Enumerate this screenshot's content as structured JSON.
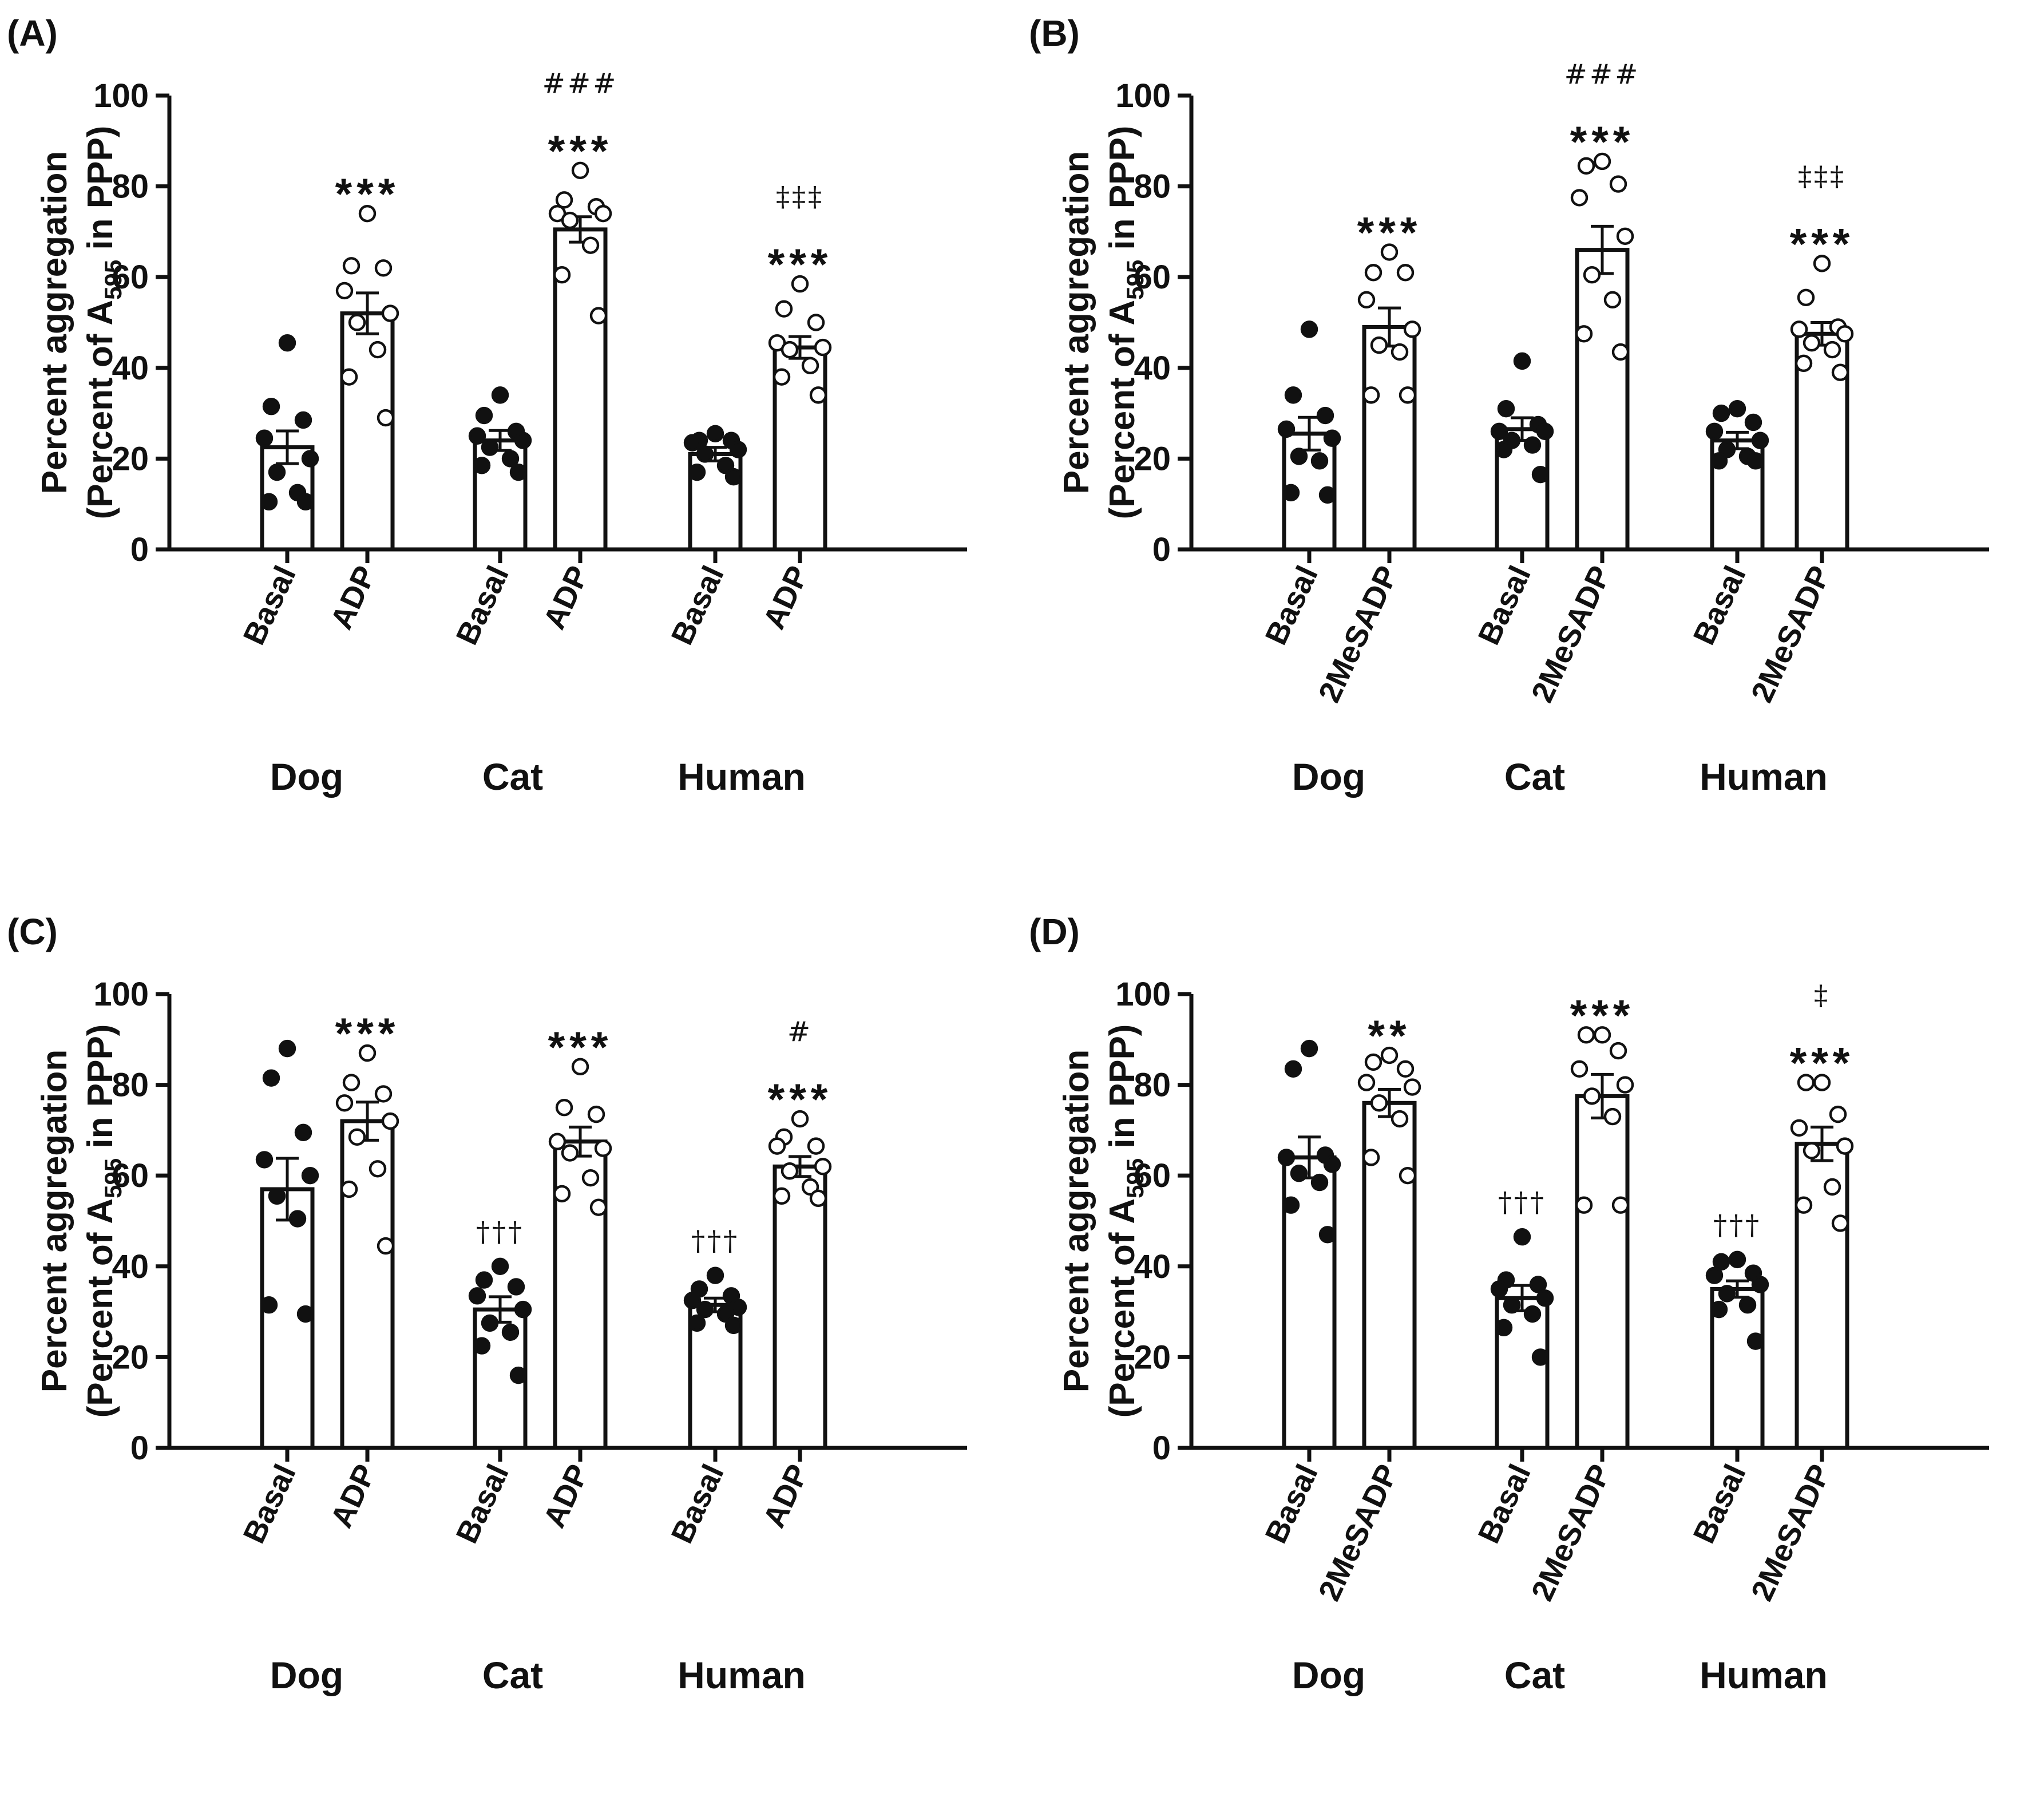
{
  "chart_data": [
    {
      "type": "bar",
      "panel_label": "(A)",
      "ylabel": "Percent aggregation",
      "ylabel2_prefix": "(Percent of A",
      "ylabel2_sub": "595",
      "ylabel2_suffix": " in PPP)",
      "ylim": [
        0,
        100
      ],
      "yticks": [
        "0",
        "20",
        "40",
        "60",
        "80",
        "100"
      ],
      "groups": [
        {
          "name": "Dog",
          "bars": [
            {
              "label": "Basal",
              "value": 22.5,
              "sem": 3.6,
              "filled": true,
              "points": [
                45.5,
                31.5,
                28.5,
                24.5,
                20,
                17,
                12.5,
                10.5,
                10.5
              ],
              "annotations": []
            },
            {
              "label": "ADP",
              "value": 52,
              "sem": 4.5,
              "filled": false,
              "points": [
                74,
                62.5,
                62,
                57,
                52,
                50,
                44,
                38,
                29
              ],
              "annotations": [
                "***"
              ]
            }
          ]
        },
        {
          "name": "Cat",
          "bars": [
            {
              "label": "Basal",
              "value": 24,
              "sem": 2.2,
              "filled": true,
              "points": [
                34,
                29.5,
                26,
                25,
                24,
                22.5,
                20,
                18.5,
                17
              ],
              "annotations": []
            },
            {
              "label": "ADP",
              "value": 70.5,
              "sem": 2.8,
              "filled": false,
              "points": [
                83.5,
                77,
                75.5,
                74,
                74,
                72.5,
                67,
                60.5,
                51.5
              ],
              "annotations": [
                "###",
                "***"
              ]
            }
          ]
        },
        {
          "name": "Human",
          "bars": [
            {
              "label": "Basal",
              "value": 21,
              "sem": 1.5,
              "filled": true,
              "points": [
                25.5,
                24,
                24,
                23.5,
                22,
                21,
                18.5,
                17,
                16
              ],
              "annotations": []
            },
            {
              "label": "ADP",
              "value": 44.5,
              "sem": 2.4,
              "filled": false,
              "points": [
                58.5,
                53,
                50,
                45.5,
                44.5,
                44,
                40.5,
                38,
                34
              ],
              "annotations": [
                "‡‡‡",
                "***"
              ]
            }
          ]
        }
      ]
    },
    {
      "type": "bar",
      "panel_label": "(B)",
      "ylabel": "Percent aggregation",
      "ylabel2_prefix": "(Percent of A",
      "ylabel2_sub": "595",
      "ylabel2_suffix": " in PPP)",
      "ylim": [
        0,
        100
      ],
      "yticks": [
        "0",
        "20",
        "40",
        "60",
        "80",
        "100"
      ],
      "groups": [
        {
          "name": "Dog",
          "bars": [
            {
              "label": "Basal",
              "value": 25.5,
              "sem": 3.6,
              "filled": true,
              "points": [
                48.5,
                34,
                29.5,
                26.5,
                24.5,
                20.5,
                19.5,
                12.5,
                12
              ],
              "annotations": []
            },
            {
              "label": "2MeSADP",
              "value": 49,
              "sem": 4.2,
              "filled": false,
              "points": [
                65.5,
                61,
                61,
                55,
                48.5,
                45,
                43.5,
                34,
                34
              ],
              "annotations": [
                "***"
              ]
            }
          ]
        },
        {
          "name": "Cat",
          "bars": [
            {
              "label": "Basal",
              "value": 26.5,
              "sem": 2.5,
              "filled": true,
              "points": [
                41.5,
                31,
                27.5,
                26,
                26,
                24,
                23,
                22,
                16.5
              ],
              "annotations": []
            },
            {
              "label": "2MeSADP",
              "value": 66,
              "sem": 5.2,
              "filled": false,
              "points": [
                85.5,
                84.5,
                80.5,
                77.5,
                69,
                60.5,
                55,
                47.5,
                43.5
              ],
              "annotations": [
                "###",
                "***"
              ]
            }
          ]
        },
        {
          "name": "Human",
          "bars": [
            {
              "label": "Basal",
              "value": 24,
              "sem": 1.8,
              "filled": true,
              "points": [
                31,
                30,
                28,
                26,
                24,
                22,
                20.5,
                19.5,
                19.5
              ],
              "annotations": []
            },
            {
              "label": "2MeSADP",
              "value": 47.5,
              "sem": 2.5,
              "filled": false,
              "points": [
                63,
                55.5,
                49,
                48.5,
                47.5,
                45.5,
                44,
                41,
                39
              ],
              "annotations": [
                "‡‡‡",
                "***"
              ]
            }
          ]
        }
      ]
    },
    {
      "type": "bar",
      "panel_label": "(C)",
      "ylabel": "Percent aggregation",
      "ylabel2_prefix": "(Percent of A",
      "ylabel2_sub": "595",
      "ylabel2_suffix": " in PPP)",
      "ylim": [
        0,
        100
      ],
      "yticks": [
        "0",
        "20",
        "40",
        "60",
        "80",
        "100"
      ],
      "groups": [
        {
          "name": "Dog",
          "bars": [
            {
              "label": "Basal",
              "value": 57,
              "sem": 6.8,
              "filled": true,
              "points": [
                88,
                81.5,
                69.5,
                63.5,
                60,
                55.5,
                50.5,
                31.5,
                29.5
              ],
              "annotations": []
            },
            {
              "label": "ADP",
              "value": 72,
              "sem": 4.2,
              "filled": false,
              "points": [
                87,
                80.5,
                78,
                76,
                72,
                68.5,
                61.5,
                57,
                44.5
              ],
              "annotations": [
                "***"
              ]
            }
          ]
        },
        {
          "name": "Cat",
          "bars": [
            {
              "label": "Basal",
              "value": 30.5,
              "sem": 2.8,
              "filled": true,
              "points": [
                40,
                37,
                35.5,
                33.5,
                30.5,
                27.5,
                25.5,
                22.5,
                16
              ],
              "annotations": [
                "†††"
              ]
            },
            {
              "label": "ADP",
              "value": 67.5,
              "sem": 3.2,
              "filled": false,
              "points": [
                84,
                75,
                73.5,
                67.5,
                66,
                65,
                59.5,
                56,
                53
              ],
              "annotations": [
                "***"
              ]
            }
          ]
        },
        {
          "name": "Human",
          "bars": [
            {
              "label": "Basal",
              "value": 31.5,
              "sem": 1.5,
              "filled": true,
              "points": [
                38,
                35,
                33.5,
                32.5,
                31,
                30.5,
                29.5,
                27.5,
                27
              ],
              "annotations": [
                "†††"
              ]
            },
            {
              "label": "ADP",
              "value": 62,
              "sem": 2.2,
              "filled": false,
              "points": [
                72.5,
                68.5,
                66.5,
                66.5,
                62,
                61,
                57.5,
                55.5,
                55
              ],
              "annotations": [
                "#",
                "***"
              ]
            }
          ]
        }
      ]
    },
    {
      "type": "bar",
      "panel_label": "(D)",
      "ylabel": "Percent aggregation",
      "ylabel2_prefix": "(Percent of A",
      "ylabel2_sub": "595",
      "ylabel2_suffix": " in PPP)",
      "ylim": [
        0,
        100
      ],
      "yticks": [
        "0",
        "20",
        "40",
        "60",
        "80",
        "100"
      ],
      "groups": [
        {
          "name": "Dog",
          "bars": [
            {
              "label": "Basal",
              "value": 64,
              "sem": 4.5,
              "filled": true,
              "points": [
                88,
                83.5,
                64.5,
                64,
                62.5,
                60.5,
                58.5,
                53.5,
                47
              ],
              "annotations": []
            },
            {
              "label": "2MeSADP",
              "value": 76,
              "sem": 3,
              "filled": false,
              "points": [
                86.5,
                85,
                83.5,
                80.5,
                79.5,
                76,
                72.5,
                64,
                60
              ],
              "annotations": [
                "**"
              ]
            }
          ]
        },
        {
          "name": "Cat",
          "bars": [
            {
              "label": "Basal",
              "value": 33,
              "sem": 2.8,
              "filled": true,
              "points": [
                46.5,
                37,
                36,
                35,
                33,
                31.5,
                29.5,
                26.5,
                20
              ],
              "annotations": [
                "†††"
              ]
            },
            {
              "label": "2MeSADP",
              "value": 77.5,
              "sem": 4.8,
              "filled": false,
              "points": [
                91,
                91,
                87.5,
                83.5,
                80,
                77.5,
                73,
                53.5,
                53.5
              ],
              "annotations": [
                "***"
              ]
            }
          ]
        },
        {
          "name": "Human",
          "bars": [
            {
              "label": "Basal",
              "value": 35,
              "sem": 1.8,
              "filled": true,
              "points": [
                41.5,
                41,
                38.5,
                38,
                36,
                34,
                31.5,
                30.5,
                23.5
              ],
              "annotations": [
                "†††"
              ]
            },
            {
              "label": "2MeSADP",
              "value": 67,
              "sem": 3.7,
              "filled": false,
              "points": [
                80.5,
                80.5,
                73.5,
                70.5,
                66.5,
                65.5,
                57.5,
                53.5,
                49.5
              ],
              "annotations": [
                "‡",
                "***"
              ]
            }
          ]
        }
      ]
    }
  ]
}
